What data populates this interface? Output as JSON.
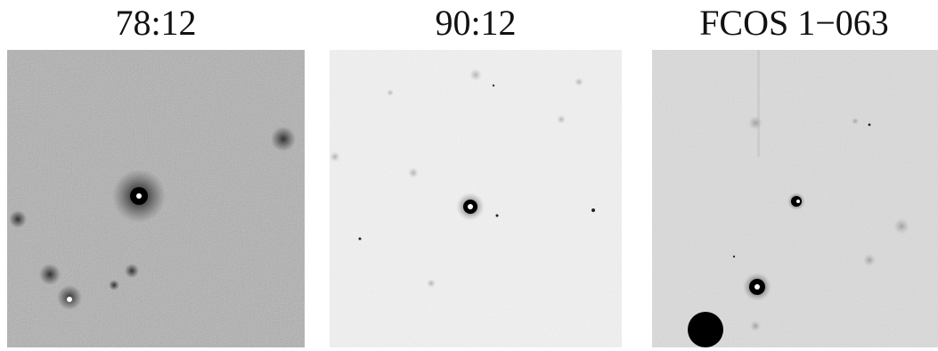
{
  "panels": [
    {
      "title": "78:12",
      "background": "#9a9a9a",
      "noise_color": "#6a6a6a"
    },
    {
      "title": "90:12",
      "background": "#eeeeee",
      "noise_color": "#cfcfcf"
    },
    {
      "title": "FCOS 1−063",
      "background": "#d9d9d9",
      "noise_color": "#bdbdbd"
    }
  ],
  "colors": {
    "star": "#000000",
    "star_core": "#ffffff",
    "page_bg": "#ffffff"
  }
}
